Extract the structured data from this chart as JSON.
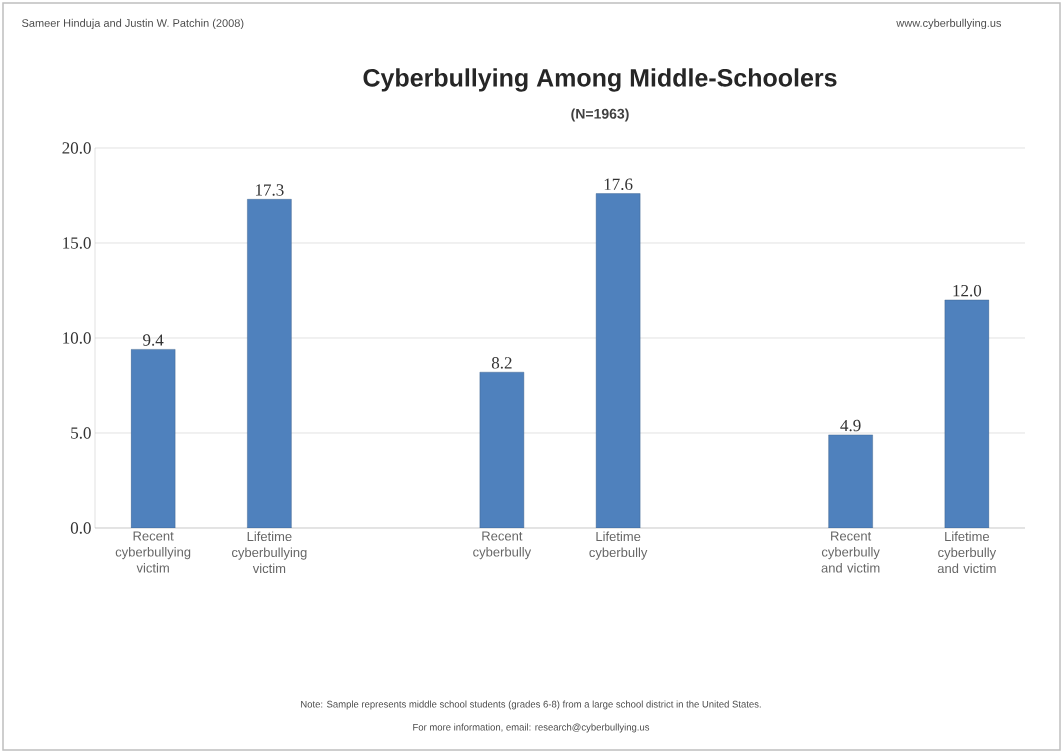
{
  "chart_data": {
    "type": "bar",
    "title": "Cyberbullying Among Middle-Schoolers",
    "subtitle": "(N=1963)",
    "categories": [
      "Recent cyberbullying victim",
      "Lifetime cyberbullying victim",
      null,
      "Recent cyberbully",
      "Lifetime cyberbully",
      null,
      "Recent cyberbully and victim",
      "Lifetime cyberbully and victim"
    ],
    "values": [
      9.4,
      17.3,
      null,
      8.2,
      17.6,
      null,
      4.9,
      12.0
    ],
    "value_labels": [
      "9.4",
      "17.3",
      null,
      "8.2",
      "17.6",
      null,
      "4.9",
      "12.0"
    ],
    "color": "#4f81bd",
    "ylim": [
      0,
      20
    ],
    "yticks": [
      {
        "value": 0,
        "label": "0.0"
      },
      {
        "value": 5,
        "label": "5.0"
      },
      {
        "value": 10,
        "label": "10.0"
      },
      {
        "value": 15,
        "label": "15.0"
      },
      {
        "value": 20,
        "label": "20.0"
      }
    ],
    "grid": "y",
    "annotations": [
      "Sameer Hinduja and Justin W. Patchin (2008)",
      "www.cyberbullying.us",
      "Note: Sample represents middle school students (grades 6-8) from a large school district in the United States.",
      "For more information,  email: research@cyberbullying.us"
    ]
  }
}
